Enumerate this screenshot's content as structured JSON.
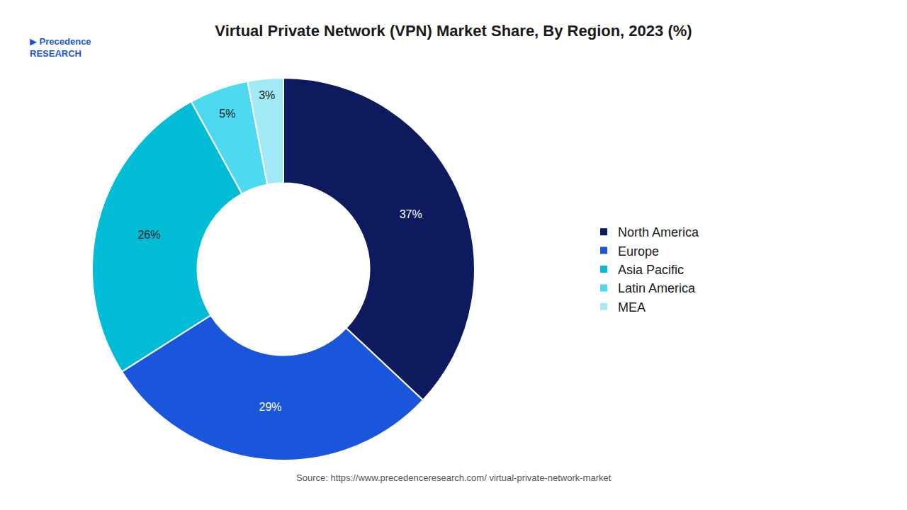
{
  "chart_data": {
    "type": "donut",
    "title": "Virtual Private Network (VPN) Market Share, By Region, 2023 (%)",
    "categories": [
      "North America",
      "Europe",
      "Asia Pacific",
      "Latin America",
      "MEA"
    ],
    "values": [
      37,
      29,
      26,
      5,
      3
    ],
    "value_labels": [
      "37%",
      "29%",
      "26%",
      "5%",
      "3%"
    ],
    "colors": [
      "#0d1b5e",
      "#1a56db",
      "#00bcd4",
      "#4dd9f0",
      "#a0e9f5"
    ],
    "data_labels": true,
    "legend": "right",
    "annotations": [
      "▶",
      "Precedence\nRESEARCH",
      "Source: https://www.precedenceresearch.com/ virtual-private-network-market"
    ]
  }
}
